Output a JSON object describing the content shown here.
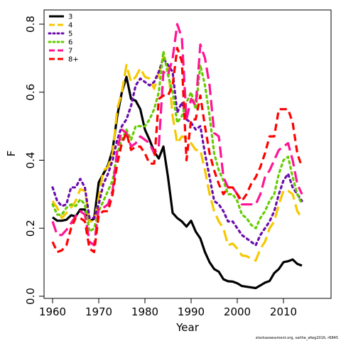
{
  "chart_data": {
    "type": "line",
    "xlabel": "Year",
    "ylabel": "F",
    "xlim": [
      1958,
      2016
    ],
    "ylim": [
      0,
      0.82
    ],
    "x_ticks": [
      1960,
      1970,
      1980,
      1990,
      2000,
      2010
    ],
    "y_ticks": [
      0.0,
      0.2,
      0.4,
      0.6,
      0.8
    ],
    "y_tick_labels": [
      "0.0",
      "0.2",
      "0.4",
      "0.6",
      "0.8"
    ],
    "grid": false,
    "legend_position": "top-left",
    "caption": "stockassessment.org, saithe_afwg2016, r6845",
    "x": [
      1960,
      1961,
      1962,
      1963,
      1964,
      1965,
      1966,
      1967,
      1968,
      1969,
      1970,
      1971,
      1972,
      1973,
      1974,
      1975,
      1976,
      1977,
      1978,
      1979,
      1980,
      1981,
      1982,
      1983,
      1984,
      1985,
      1986,
      1987,
      1988,
      1989,
      1990,
      1991,
      1992,
      1993,
      1994,
      1995,
      1996,
      1997,
      1998,
      1999,
      2000,
      2001,
      2002,
      2003,
      2004,
      2005,
      2006,
      2007,
      2008,
      2009,
      2010,
      2011,
      2012,
      2013,
      2014
    ],
    "series": [
      {
        "name": "3",
        "color": "#000000",
        "dash": "solid",
        "values": [
          0.232,
          0.222,
          0.222,
          0.225,
          0.238,
          0.235,
          0.255,
          0.255,
          0.22,
          0.228,
          0.335,
          0.36,
          0.385,
          0.43,
          0.53,
          0.6,
          0.645,
          0.58,
          0.575,
          0.55,
          0.49,
          0.46,
          0.425,
          0.405,
          0.44,
          0.35,
          0.245,
          0.23,
          0.22,
          0.205,
          0.222,
          0.19,
          0.17,
          0.13,
          0.1,
          0.08,
          0.072,
          0.05,
          0.044,
          0.043,
          0.038,
          0.03,
          0.028,
          0.026,
          0.024,
          0.032,
          0.04,
          0.045,
          0.068,
          0.08,
          0.1,
          0.103,
          0.108,
          0.095,
          0.09
        ]
      },
      {
        "name": "4",
        "color": "#f5c800",
        "dash": "dashed",
        "values": [
          0.28,
          0.26,
          0.23,
          0.245,
          0.26,
          0.28,
          0.315,
          0.31,
          0.22,
          0.22,
          0.29,
          0.37,
          0.38,
          0.42,
          0.55,
          0.6,
          0.68,
          0.63,
          0.645,
          0.67,
          0.645,
          0.64,
          0.61,
          0.655,
          0.705,
          0.68,
          0.53,
          0.45,
          0.47,
          0.465,
          0.45,
          0.43,
          0.43,
          0.37,
          0.3,
          0.25,
          0.22,
          0.2,
          0.15,
          0.155,
          0.14,
          0.12,
          0.118,
          0.11,
          0.105,
          0.14,
          0.16,
          0.2,
          0.22,
          0.27,
          0.31,
          0.31,
          0.3,
          0.25,
          0.23
        ]
      },
      {
        "name": "5",
        "color": "#6a0dad",
        "dash": "dotted",
        "values": [
          0.32,
          0.28,
          0.265,
          0.27,
          0.32,
          0.32,
          0.345,
          0.32,
          0.23,
          0.23,
          0.27,
          0.33,
          0.36,
          0.4,
          0.46,
          0.5,
          0.52,
          0.56,
          0.62,
          0.64,
          0.63,
          0.62,
          0.63,
          0.66,
          0.7,
          0.68,
          0.66,
          0.54,
          0.57,
          0.52,
          0.51,
          0.49,
          0.5,
          0.42,
          0.35,
          0.28,
          0.27,
          0.25,
          0.22,
          0.22,
          0.2,
          0.18,
          0.17,
          0.16,
          0.15,
          0.18,
          0.2,
          0.22,
          0.25,
          0.3,
          0.34,
          0.36,
          0.32,
          0.3,
          0.28
        ]
      },
      {
        "name": "6",
        "color": "#66cc00",
        "dash": "dotted",
        "values": [
          0.27,
          0.24,
          0.24,
          0.26,
          0.27,
          0.265,
          0.285,
          0.27,
          0.19,
          0.2,
          0.25,
          0.28,
          0.31,
          0.34,
          0.42,
          0.46,
          0.49,
          0.46,
          0.5,
          0.5,
          0.5,
          0.52,
          0.55,
          0.6,
          0.72,
          0.65,
          0.6,
          0.51,
          0.53,
          0.57,
          0.6,
          0.55,
          0.68,
          0.62,
          0.53,
          0.42,
          0.37,
          0.34,
          0.3,
          0.3,
          0.28,
          0.24,
          0.23,
          0.21,
          0.2,
          0.23,
          0.25,
          0.28,
          0.3,
          0.36,
          0.4,
          0.41,
          0.35,
          0.3,
          0.27
        ]
      },
      {
        "name": "7",
        "color": "#ff1493",
        "dash": "dashed",
        "values": [
          0.22,
          0.18,
          0.18,
          0.195,
          0.215,
          0.235,
          0.25,
          0.24,
          0.16,
          0.15,
          0.26,
          0.26,
          0.27,
          0.31,
          0.43,
          0.49,
          0.48,
          0.44,
          0.45,
          0.47,
          0.46,
          0.45,
          0.42,
          0.44,
          0.66,
          0.65,
          0.7,
          0.8,
          0.76,
          0.52,
          0.58,
          0.56,
          0.74,
          0.7,
          0.62,
          0.48,
          0.47,
          0.35,
          0.32,
          0.32,
          0.3,
          0.27,
          0.27,
          0.27,
          0.27,
          0.3,
          0.35,
          0.37,
          0.4,
          0.43,
          0.44,
          0.45,
          0.4,
          0.33,
          0.3
        ]
      },
      {
        "name": "8+",
        "color": "#ff0000",
        "dash": "dashed",
        "values": [
          0.16,
          0.13,
          0.135,
          0.15,
          0.2,
          0.23,
          0.23,
          0.22,
          0.14,
          0.13,
          0.24,
          0.25,
          0.25,
          0.3,
          0.39,
          0.45,
          0.48,
          0.43,
          0.44,
          0.44,
          0.42,
          0.39,
          0.39,
          0.58,
          0.59,
          0.59,
          0.62,
          0.73,
          0.69,
          0.4,
          0.52,
          0.52,
          0.59,
          0.5,
          0.42,
          0.37,
          0.33,
          0.3,
          0.32,
          0.32,
          0.3,
          0.28,
          0.3,
          0.33,
          0.35,
          0.38,
          0.42,
          0.47,
          0.47,
          0.55,
          0.55,
          0.55,
          0.51,
          0.42,
          0.38
        ]
      }
    ]
  }
}
